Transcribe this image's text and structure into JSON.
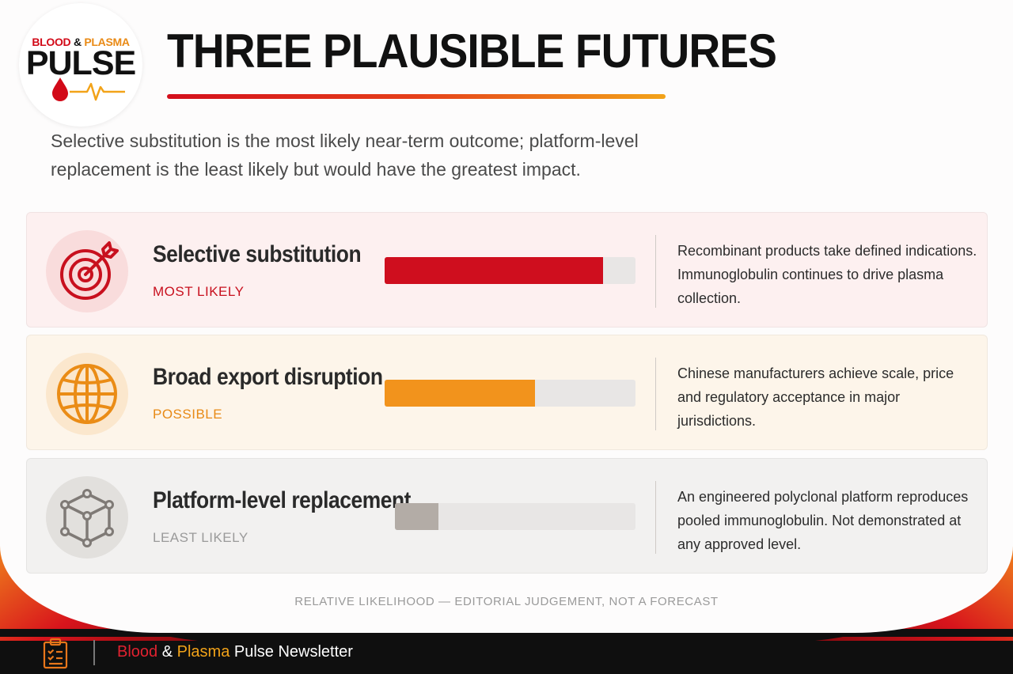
{
  "logo": {
    "top_line": {
      "word1": "BLOOD",
      "amp": "&",
      "word2": "PLASMA"
    },
    "main": "PULSE"
  },
  "title": "THREE PLAUSIBLE FUTURES",
  "subtitle": "Selective substitution is the most likely near-term outcome; platform-level replacement is the least likely but would have the greatest impact.",
  "scenarios": [
    {
      "icon": "target-icon",
      "title": "Selective substitution",
      "likelihood_label": "MOST LIKELY",
      "likelihood_bar": 0.87,
      "description": "Recombinant products take defined indications. Immunoglobulin continues to drive plasma collection.",
      "color": "#cf0e1e"
    },
    {
      "icon": "globe-icon",
      "title": "Broad export disruption",
      "likelihood_label": "POSSIBLE",
      "likelihood_bar": 0.6,
      "description": "Chinese manufacturers achieve scale, price and regulatory acceptance in major jurisdictions.",
      "color": "#f2931c"
    },
    {
      "icon": "cube-network-icon",
      "title": "Platform-level replacement",
      "likelihood_label": "LEAST LIKELY",
      "likelihood_bar": 0.18,
      "description": "An engineered polyclonal platform reproduces pooled immunoglobulin. Not demonstrated at any approved level.",
      "color": "#b3aca6"
    }
  ],
  "footnote": "RELATIVE LIKELIHOOD — EDITORIAL JUDGEMENT, NOT A FORECAST",
  "footer": {
    "icon": "clipboard-icon",
    "word1": "Blood",
    "amp": "&",
    "word2": "Plasma",
    "rest": "Pulse Newsletter"
  }
}
